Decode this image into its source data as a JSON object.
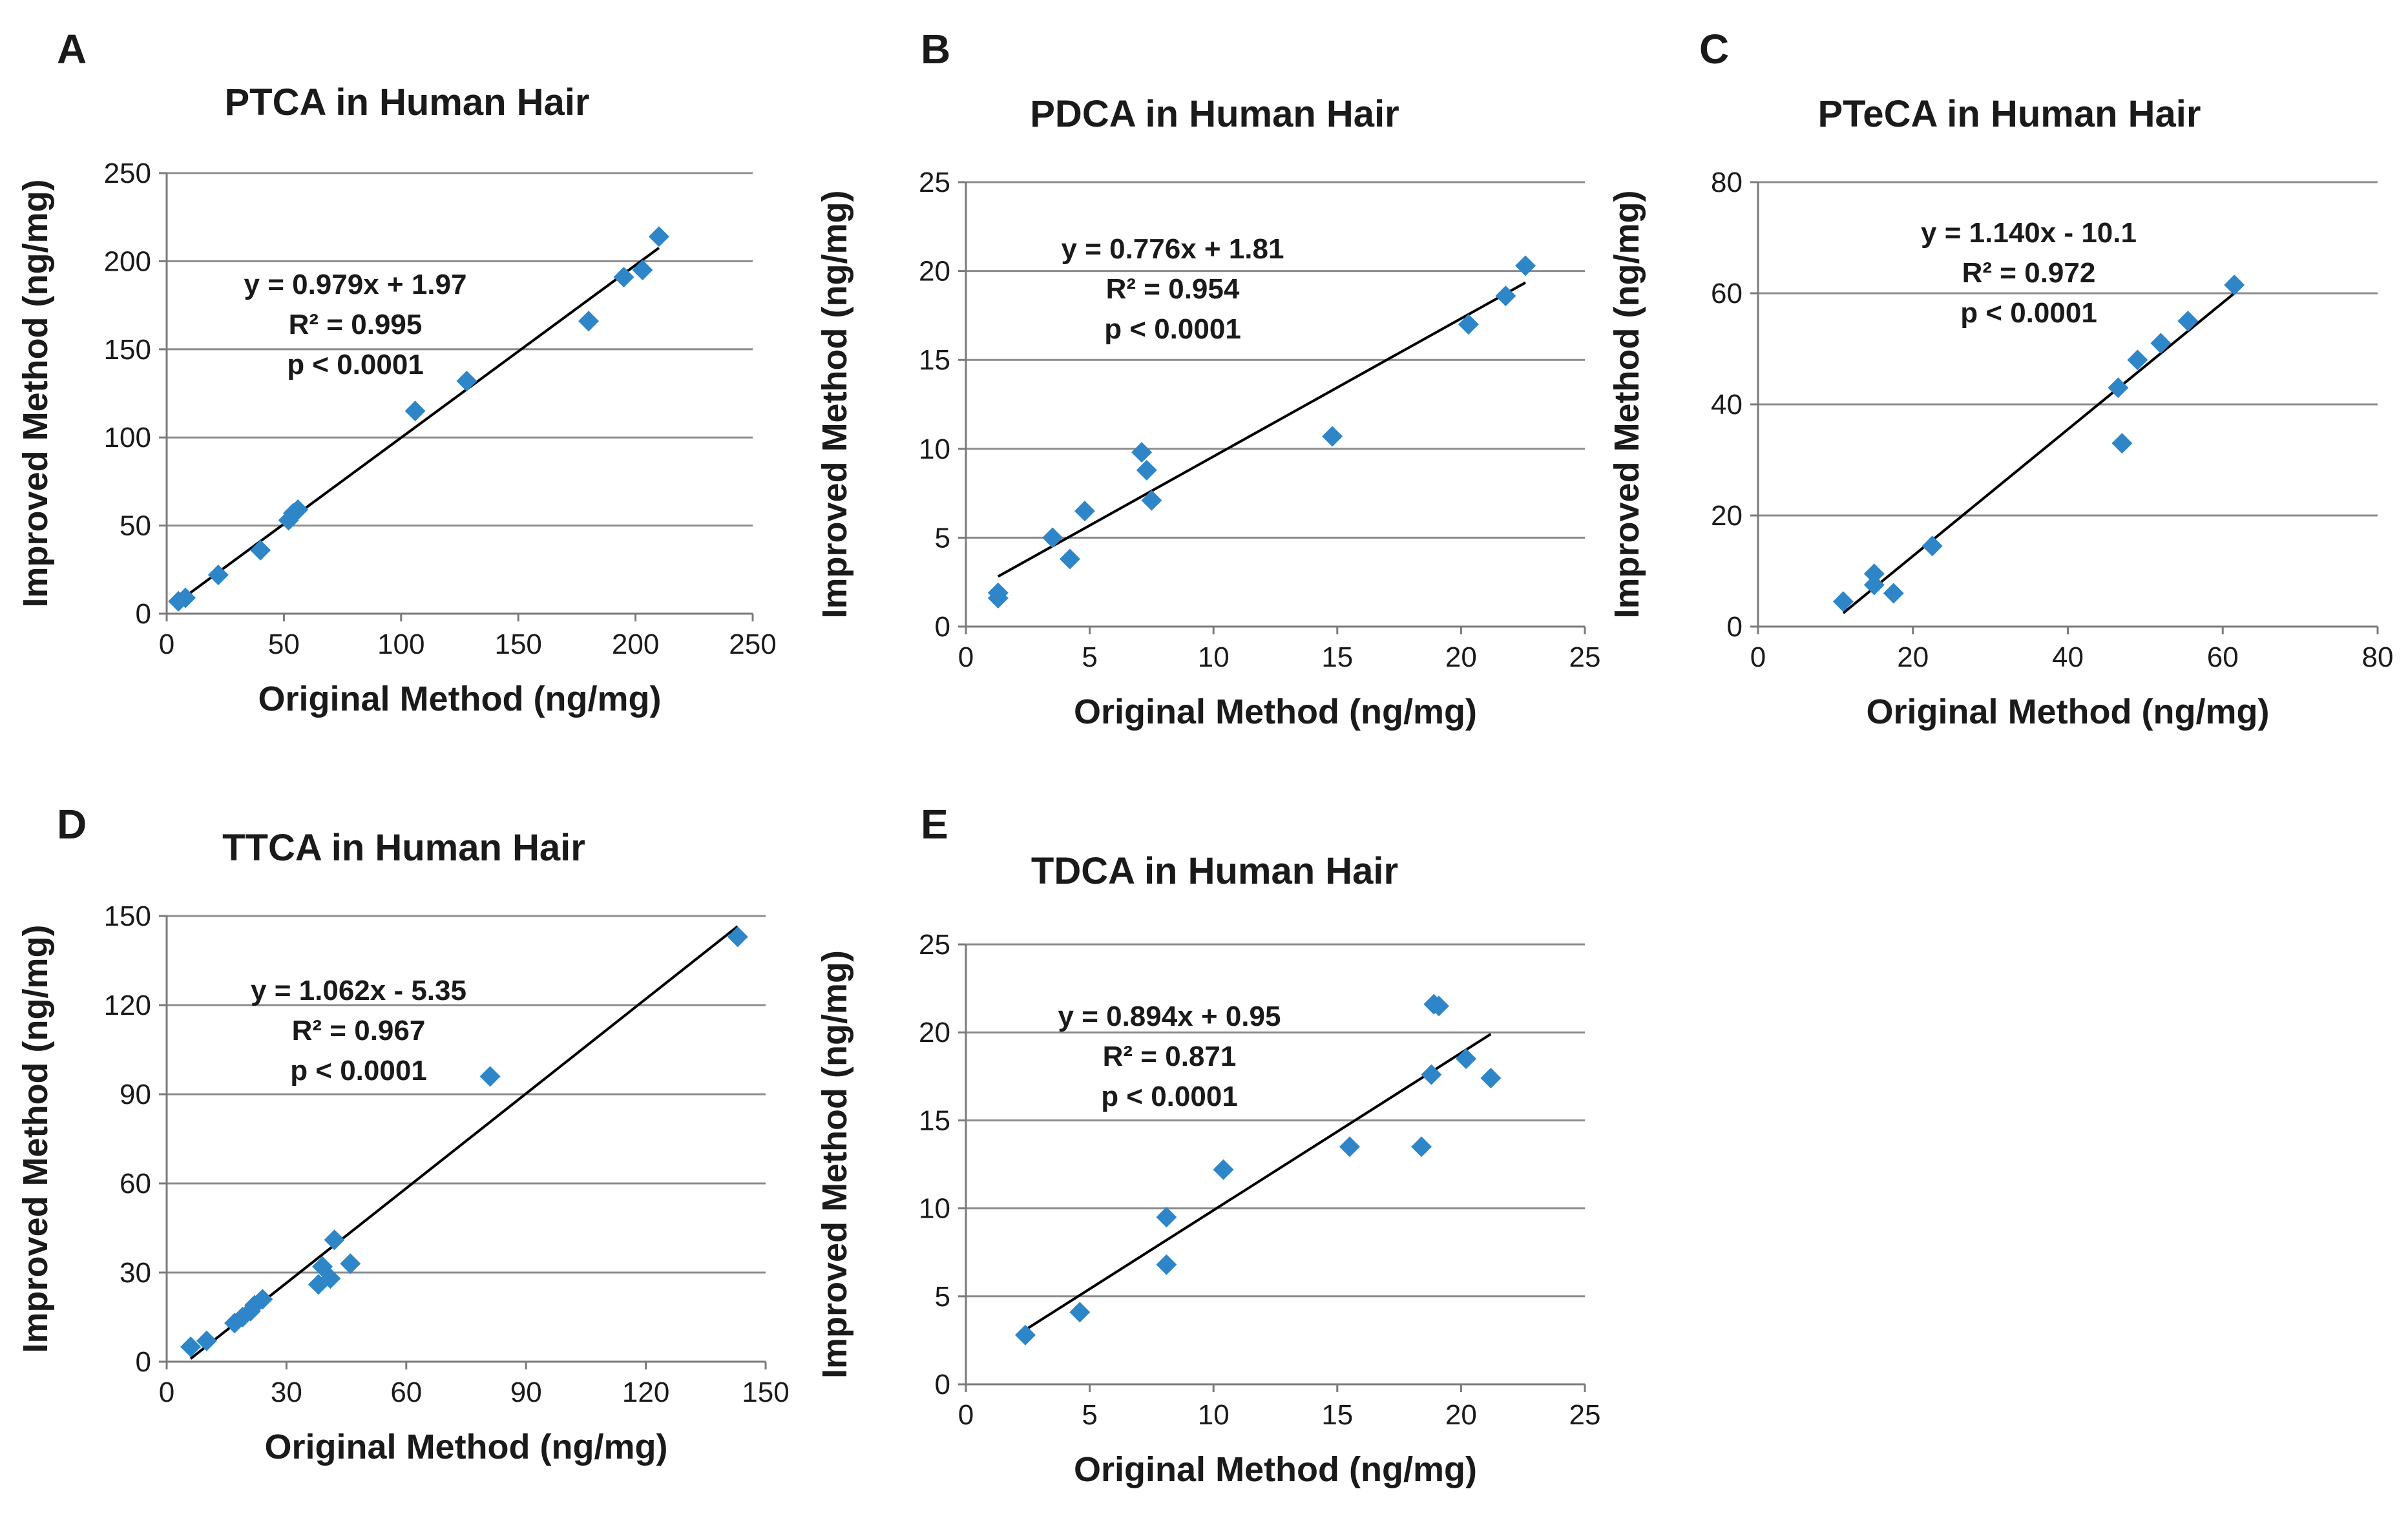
{
  "figure": {
    "marker_color": "#2E86C8",
    "grid_color": "#8c8c8c",
    "line_color": "#000000"
  },
  "chart_data": [
    {
      "panel": "A",
      "type": "scatter",
      "title": "PTCA in Human Hair",
      "xlabel": "Original Method (ng/mg)",
      "ylabel": "Improved Method (ng/mg)",
      "xlim": [
        0,
        250
      ],
      "ylim": [
        0,
        250
      ],
      "xticks": [
        0,
        50,
        100,
        150,
        200,
        250
      ],
      "yticks": [
        0,
        50,
        100,
        150,
        200,
        250
      ],
      "points": [
        [
          5,
          7
        ],
        [
          8,
          9
        ],
        [
          22,
          22
        ],
        [
          40,
          36
        ],
        [
          52,
          53
        ],
        [
          54,
          57
        ],
        [
          56,
          59
        ],
        [
          106,
          115
        ],
        [
          128,
          132
        ],
        [
          180,
          166
        ],
        [
          195,
          191
        ],
        [
          203,
          195
        ],
        [
          210,
          214
        ]
      ],
      "fit": {
        "slope": 0.979,
        "intercept": 1.97,
        "x_range": [
          7,
          210
        ]
      },
      "annotation": [
        "y = 0.979x + 1.97",
        "R² = 0.995",
        "p < 0.0001"
      ]
    },
    {
      "panel": "B",
      "type": "scatter",
      "title": "PDCA in Human Hair",
      "xlabel": "Original Method (ng/mg)",
      "ylabel": "Improved Method (ng/mg)",
      "xlim": [
        0,
        25
      ],
      "ylim": [
        0,
        25
      ],
      "xticks": [
        0,
        5,
        10,
        15,
        20,
        25
      ],
      "yticks": [
        0,
        5,
        10,
        15,
        20,
        25
      ],
      "points": [
        [
          1.3,
          1.6
        ],
        [
          1.3,
          1.9
        ],
        [
          3.5,
          5.0
        ],
        [
          4.2,
          3.8
        ],
        [
          4.8,
          6.5
        ],
        [
          7.1,
          9.8
        ],
        [
          7.3,
          8.8
        ],
        [
          7.5,
          7.1
        ],
        [
          14.8,
          10.7
        ],
        [
          20.3,
          17.0
        ],
        [
          21.8,
          18.6
        ],
        [
          22.6,
          20.3
        ]
      ],
      "fit": {
        "slope": 0.776,
        "intercept": 1.81,
        "x_range": [
          1.3,
          22.6
        ]
      },
      "annotation": [
        "y = 0.776x + 1.81",
        "R² = 0.954",
        "p < 0.0001"
      ]
    },
    {
      "panel": "C",
      "type": "scatter",
      "title": "PTeCA in Human Hair",
      "xlabel": "Original Method (ng/mg)",
      "ylabel": "Improved Method (ng/mg)",
      "xlim": [
        0,
        80
      ],
      "ylim": [
        0,
        80
      ],
      "xticks": [
        0,
        20,
        40,
        60,
        80
      ],
      "yticks": [
        0,
        20,
        40,
        60,
        80
      ],
      "points": [
        [
          11,
          4.5
        ],
        [
          15,
          7.5
        ],
        [
          15,
          9.5
        ],
        [
          17.5,
          6
        ],
        [
          22.5,
          14.5
        ],
        [
          46.5,
          43
        ],
        [
          47,
          33
        ],
        [
          49,
          48
        ],
        [
          52,
          51
        ],
        [
          55.5,
          55
        ],
        [
          61.5,
          61.5
        ]
      ],
      "fit": {
        "slope": 1.14,
        "intercept": -10.1,
        "x_range": [
          11,
          61.5
        ]
      },
      "annotation": [
        "y = 1.140x - 10.1",
        "R² = 0.972",
        "p < 0.0001"
      ]
    },
    {
      "panel": "D",
      "type": "scatter",
      "title": "TTCA in Human Hair",
      "xlabel": "Original Method (ng/mg)",
      "ylabel": "Improved Method (ng/mg)",
      "xlim": [
        0,
        150
      ],
      "ylim": [
        0,
        150
      ],
      "xticks": [
        0,
        30,
        60,
        90,
        120,
        150
      ],
      "yticks": [
        0,
        30,
        60,
        90,
        120,
        150
      ],
      "points": [
        [
          6,
          5
        ],
        [
          10,
          7
        ],
        [
          17,
          13
        ],
        [
          19,
          15
        ],
        [
          21,
          17
        ],
        [
          22,
          19
        ],
        [
          24,
          21
        ],
        [
          38,
          26
        ],
        [
          39,
          32
        ],
        [
          41,
          28
        ],
        [
          42,
          41
        ],
        [
          46,
          33
        ],
        [
          81,
          96
        ],
        [
          143,
          143
        ]
      ],
      "fit": {
        "slope": 1.062,
        "intercept": -5.35,
        "x_range": [
          6,
          143
        ]
      },
      "annotation": [
        "y = 1.062x - 5.35",
        "R² = 0.967",
        "p < 0.0001"
      ]
    },
    {
      "panel": "E",
      "type": "scatter",
      "title": "TDCA in Human Hair",
      "xlabel": "Original Method (ng/mg)",
      "ylabel": "Improved Method (ng/mg)",
      "xlim": [
        0,
        25
      ],
      "ylim": [
        0,
        25
      ],
      "xticks": [
        0,
        5,
        10,
        15,
        20,
        25
      ],
      "yticks": [
        0,
        5,
        10,
        15,
        20,
        25
      ],
      "points": [
        [
          2.4,
          2.8
        ],
        [
          4.6,
          4.1
        ],
        [
          8.1,
          6.8
        ],
        [
          8.1,
          9.5
        ],
        [
          10.4,
          12.2
        ],
        [
          15.5,
          13.5
        ],
        [
          18.4,
          13.5
        ],
        [
          18.8,
          17.6
        ],
        [
          18.9,
          21.6
        ],
        [
          19.1,
          21.5
        ],
        [
          20.2,
          18.5
        ],
        [
          21.2,
          17.4
        ]
      ],
      "fit": {
        "slope": 0.894,
        "intercept": 0.95,
        "x_range": [
          2.4,
          21.2
        ]
      },
      "annotation": [
        "y = 0.894x + 0.95",
        "R² = 0.871",
        "p < 0.0001"
      ]
    }
  ]
}
